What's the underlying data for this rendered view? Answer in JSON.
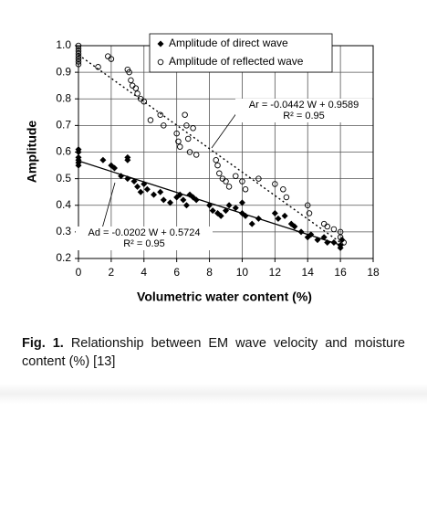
{
  "chart_data": {
    "type": "scatter",
    "xlabel": "Volumetric water content (%)",
    "ylabel": "Amplitude",
    "xlim": [
      0,
      18
    ],
    "xticks": [
      0,
      2,
      4,
      6,
      8,
      10,
      12,
      14,
      16,
      18
    ],
    "ylim": [
      0.2,
      1.0
    ],
    "yticks": [
      0.2,
      0.3,
      0.4,
      0.5,
      0.6,
      0.7,
      0.8,
      0.9,
      {
        "value": 1.0,
        "label": "1.0"
      }
    ],
    "grid": true,
    "series": [
      {
        "name": "Amplitude of direct wave",
        "color": "#000000",
        "marker": "diamond",
        "line": "solid",
        "x": [
          0,
          0,
          0,
          0,
          0,
          0,
          1.5,
          2,
          2.2,
          2.6,
          3,
          3,
          3,
          3.4,
          3.6,
          3.8,
          4,
          4.2,
          4.6,
          5,
          5.2,
          5.6,
          6,
          6.2,
          6.4,
          6.6,
          6.8,
          7,
          7.2,
          8,
          8.2,
          8.5,
          8.7,
          9,
          9.2,
          9.6,
          10,
          10,
          10.2,
          10.6,
          11,
          12,
          12.2,
          12.6,
          13,
          13.2,
          13.6,
          14,
          14.2,
          14.6,
          15,
          15.2,
          15.6,
          16,
          16,
          16.1
        ],
        "values": [
          0.61,
          0.6,
          0.58,
          0.57,
          0.56,
          0.55,
          0.57,
          0.55,
          0.54,
          0.51,
          0.58,
          0.57,
          0.5,
          0.49,
          0.47,
          0.45,
          0.48,
          0.46,
          0.44,
          0.45,
          0.42,
          0.41,
          0.43,
          0.44,
          0.42,
          0.4,
          0.44,
          0.43,
          0.42,
          0.4,
          0.38,
          0.37,
          0.36,
          0.38,
          0.4,
          0.39,
          0.41,
          0.37,
          0.36,
          0.33,
          0.35,
          0.37,
          0.35,
          0.36,
          0.33,
          0.32,
          0.3,
          0.28,
          0.29,
          0.27,
          0.28,
          0.26,
          0.26,
          0.25,
          0.24,
          0.27
        ]
      },
      {
        "name": "Amplitude of reflected wave",
        "color": "#000000",
        "marker": "circle",
        "line": "dotted",
        "x": [
          0,
          0,
          0,
          0,
          0,
          0,
          0,
          0,
          1.2,
          1.8,
          2,
          3,
          3.1,
          3.2,
          3.3,
          3.5,
          3.6,
          3.8,
          4,
          4.4,
          5,
          5.2,
          6,
          6.1,
          6.2,
          6.5,
          6.6,
          6.7,
          6.8,
          7,
          7.2,
          8.4,
          8.5,
          8.6,
          8.8,
          9,
          9.2,
          9.6,
          10,
          10.2,
          11,
          12,
          12.5,
          12.7,
          14,
          14.1,
          15,
          15.2,
          15.6,
          16,
          16,
          16.2
        ],
        "values": [
          1.0,
          0.99,
          0.98,
          0.97,
          0.96,
          0.95,
          0.94,
          0.93,
          0.92,
          0.96,
          0.95,
          0.91,
          0.9,
          0.87,
          0.85,
          0.84,
          0.82,
          0.8,
          0.79,
          0.72,
          0.74,
          0.7,
          0.67,
          0.64,
          0.62,
          0.74,
          0.7,
          0.65,
          0.6,
          0.69,
          0.59,
          0.57,
          0.55,
          0.52,
          0.5,
          0.49,
          0.47,
          0.51,
          0.49,
          0.46,
          0.5,
          0.48,
          0.46,
          0.43,
          0.4,
          0.37,
          0.33,
          0.32,
          0.31,
          0.3,
          0.28,
          0.26
        ]
      }
    ],
    "annotations": [
      {
        "lines": [
          "Ar = -0.0442 W + 0.9589",
          "R² = 0.95"
        ],
        "series": 1
      },
      {
        "lines": [
          "Ad = -0.0202 W + 0.5724",
          "R² = 0.95"
        ],
        "series": 0
      }
    ]
  },
  "caption": {
    "label": "Fig. 1.",
    "text": "Relationship between EM wave velocity and moisture content (%) [13]"
  }
}
